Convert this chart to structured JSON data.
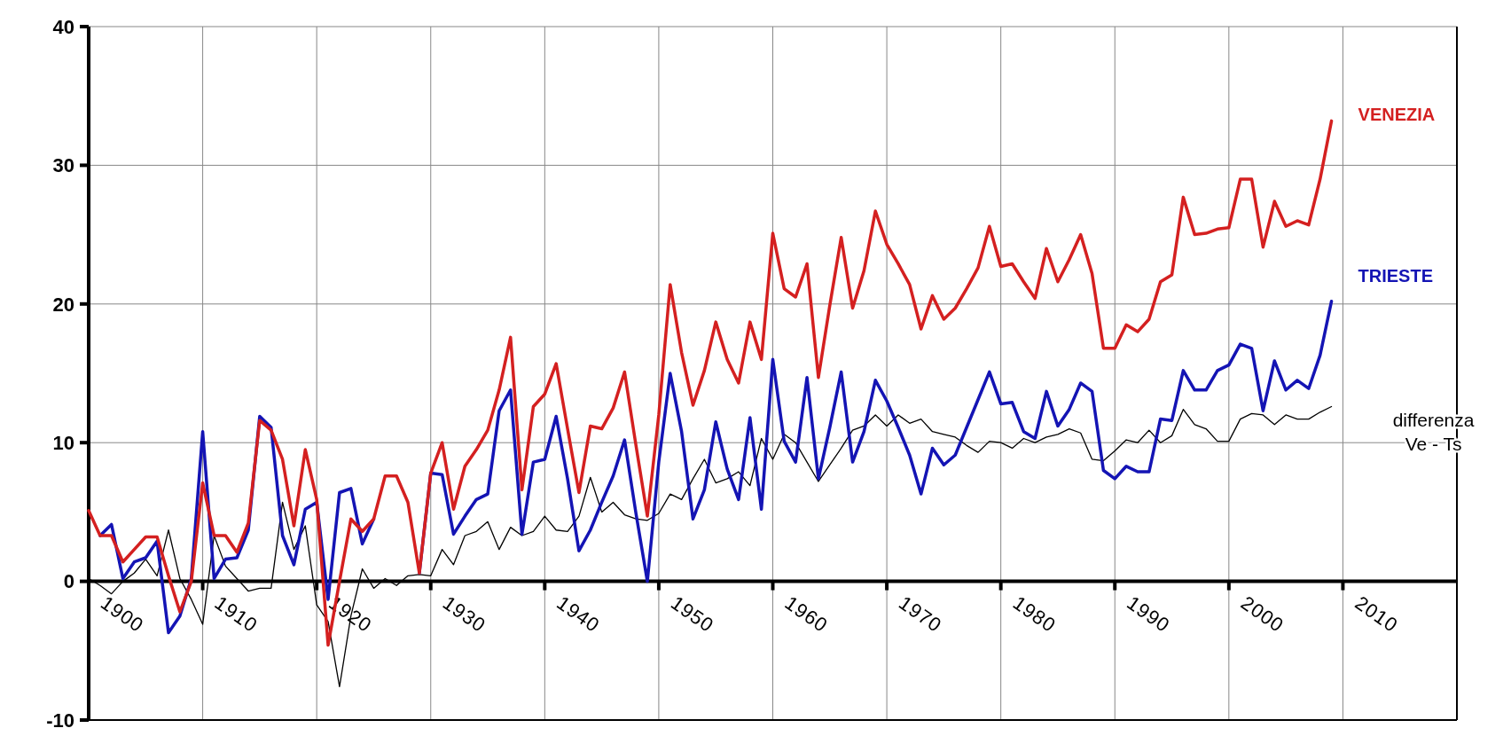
{
  "chart_data": {
    "type": "line",
    "x": [
      1900,
      1901,
      1902,
      1903,
      1904,
      1905,
      1906,
      1907,
      1908,
      1909,
      1910,
      1911,
      1912,
      1913,
      1914,
      1915,
      1916,
      1917,
      1918,
      1919,
      1920,
      1921,
      1922,
      1923,
      1924,
      1925,
      1926,
      1927,
      1928,
      1929,
      1930,
      1931,
      1932,
      1933,
      1934,
      1935,
      1936,
      1937,
      1938,
      1939,
      1940,
      1941,
      1942,
      1943,
      1944,
      1945,
      1946,
      1947,
      1948,
      1949,
      1950,
      1951,
      1952,
      1953,
      1954,
      1955,
      1956,
      1957,
      1958,
      1959,
      1960,
      1961,
      1962,
      1963,
      1964,
      1965,
      1966,
      1967,
      1968,
      1969,
      1970,
      1971,
      1972,
      1973,
      1974,
      1975,
      1976,
      1977,
      1978,
      1979,
      1980,
      1981,
      1982,
      1983,
      1984,
      1985,
      1986,
      1987,
      1988,
      1989,
      1990,
      1991,
      1992,
      1993,
      1994,
      1995,
      1996,
      1997,
      1998,
      1999,
      2000,
      2001,
      2002,
      2003,
      2004,
      2005,
      2006,
      2007,
      2008,
      2009
    ],
    "series": [
      {
        "name": "VENEZIA",
        "color": "#d42020",
        "values": [
          5.1,
          3.3,
          3.3,
          1.4,
          2.3,
          3.2,
          3.2,
          0.4,
          -2.2,
          0,
          7.1,
          3.3,
          3.3,
          2.1,
          4.2,
          11.6,
          10.9,
          8.8,
          4.0,
          9.5,
          5.9,
          -4.6,
          0,
          4.5,
          3.6,
          4.5,
          7.6,
          7.6,
          5.7,
          0.6,
          7.8,
          10,
          5.2,
          8.3,
          9.5,
          10.9,
          13.8,
          17.6,
          6.6,
          12.6,
          13.5,
          15.7,
          11,
          6.4,
          11.2,
          11.0,
          12.5,
          15.1,
          9.8,
          4.7,
          12,
          21.4,
          16.5,
          12.7,
          15.2,
          18.7,
          16,
          14.3,
          18.7,
          16,
          25.1,
          21.1,
          20.5,
          22.9,
          14.7,
          19.9,
          24.8,
          19.7,
          22.4,
          26.7,
          24.3,
          22.9,
          21.4,
          18.2,
          20.6,
          18.9,
          19.7,
          21.1,
          22.6,
          25.6,
          22.7,
          22.9,
          21.6,
          20.4,
          24.0,
          21.6,
          23.2,
          25.0,
          22.2,
          16.8,
          16.8,
          18.5,
          18.0,
          18.9,
          21.6,
          22.1,
          27.7,
          25.0,
          25.1,
          25.4,
          25.5,
          29.0,
          29.0,
          24.1,
          27.4,
          25.6,
          26.0,
          25.7,
          29.0,
          33.2
        ]
      },
      {
        "name": "TRIESTE",
        "color": "#1414b4",
        "values": [
          null,
          3.3,
          4.1,
          0.2,
          1.4,
          1.7,
          2.9,
          -3.7,
          -2.5,
          0.2,
          10.8,
          0.2,
          1.6,
          1.7,
          3.7,
          11.9,
          11.1,
          3.3,
          1.2,
          5.2,
          5.7,
          -1.3,
          6.4,
          6.7,
          2.7,
          4.5,
          null,
          null,
          null,
          0.6,
          7.8,
          7.7,
          3.4,
          4.7,
          5.9,
          6.3,
          12.3,
          13.8,
          3.4,
          8.6,
          8.8,
          11.9,
          7.4,
          2.2,
          3.7,
          5.7,
          7.6,
          10.2,
          4.9,
          0,
          8.6,
          15.0,
          10.8,
          4.5,
          6.6,
          11.5,
          8.1,
          5.9,
          11.8,
          5.2,
          16.0,
          10.1,
          8.6,
          14.7,
          7.4,
          11.1,
          15.1,
          8.6,
          10.8,
          14.5,
          13.0,
          11.1,
          9.1,
          6.3,
          9.6,
          8.4,
          9.1,
          11.1,
          13.1,
          15.1,
          12.8,
          12.9,
          10.8,
          10.3,
          13.7,
          11.2,
          12.4,
          14.3,
          13.7,
          8.0,
          7.4,
          8.3,
          7.9,
          7.9,
          11.7,
          11.6,
          15.2,
          13.8,
          13.8,
          15.2,
          15.6,
          17.1,
          16.8,
          12.3,
          15.9,
          13.8,
          14.5,
          13.9,
          16.3,
          20.2
        ]
      },
      {
        "name": "differenza Ve - Ts",
        "color": "#000000",
        "values": [
          0.2,
          -0.3,
          -0.9,
          0,
          0.6,
          1.6,
          0.4,
          3.7,
          0.2,
          -1.3,
          -3.1,
          3.3,
          1.1,
          0.2,
          -0.7,
          -0.5,
          -0.5,
          5.7,
          2.3,
          4.0,
          -1.7,
          -2.9,
          -7.6,
          -2.5,
          0.9,
          -0.5,
          0.2,
          -0.3,
          0.4,
          0.5,
          0.4,
          2.3,
          1.2,
          3.3,
          3.6,
          4.3,
          2.3,
          3.9,
          3.3,
          3.6,
          4.7,
          3.7,
          3.6,
          4.7,
          7.5,
          5.0,
          5.7,
          4.8,
          4.5,
          4.4,
          4.9,
          6.3,
          5.9,
          7.4,
          8.8,
          7.1,
          7.4,
          7.9,
          6.9,
          10.3,
          8.8,
          10.6,
          10.0,
          8.6,
          7.2,
          8.4,
          9.6,
          10.9,
          11.2,
          12.0,
          11.2,
          12.0,
          11.4,
          11.7,
          10.8,
          10.6,
          10.4,
          9.8,
          9.3,
          10.1,
          10.0,
          9.6,
          10.3,
          10.0,
          10.4,
          10.6,
          11.0,
          10.7,
          8.8,
          8.7,
          9.4,
          10.2,
          10.0,
          10.9,
          10.0,
          10.5,
          12.4,
          11.3,
          11.0,
          10.1,
          10.1,
          11.7,
          12.1,
          12.0,
          11.3,
          12.0,
          11.7,
          11.7,
          12.2,
          12.6
        ]
      }
    ],
    "xlim": [
      1900,
      2020
    ],
    "xticks": [
      1900,
      1910,
      1920,
      1930,
      1940,
      1950,
      1960,
      1970,
      1980,
      1990,
      2000,
      2010
    ],
    "ylim": [
      -10,
      40
    ],
    "yticks": [
      -10,
      0,
      10,
      20,
      30,
      40
    ],
    "grid": true,
    "legend": false
  }
}
